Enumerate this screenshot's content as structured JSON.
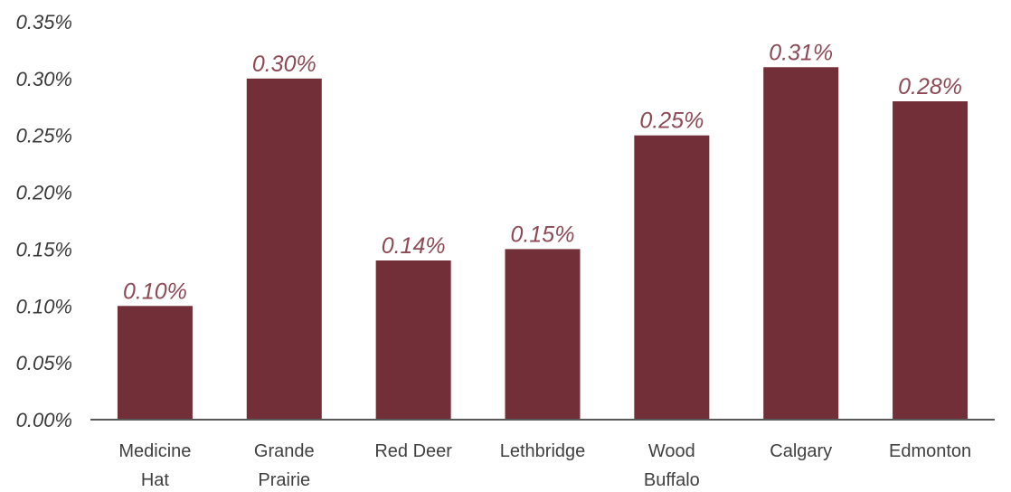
{
  "chart_data": {
    "type": "bar",
    "categories": [
      [
        "Medicine",
        "Hat"
      ],
      [
        "Grande",
        "Prairie"
      ],
      [
        "Red Deer"
      ],
      [
        "Lethbridge"
      ],
      [
        "Wood",
        "Buffalo"
      ],
      [
        "Calgary"
      ],
      [
        "Edmonton"
      ]
    ],
    "values": [
      0.1,
      0.3,
      0.14,
      0.15,
      0.25,
      0.31,
      0.28
    ],
    "data_labels": [
      "0.10%",
      "0.30%",
      "0.14%",
      "0.15%",
      "0.25%",
      "0.31%",
      "0.28%"
    ],
    "yticks": [
      0,
      0.05,
      0.1,
      0.15,
      0.2,
      0.25,
      0.3,
      0.35
    ],
    "ytick_labels": [
      "0.00%",
      "0.05%",
      "0.10%",
      "0.15%",
      "0.20%",
      "0.25%",
      "0.30%",
      "0.35%"
    ],
    "ylim": [
      0,
      0.35
    ],
    "title": "",
    "xlabel": "",
    "ylabel": "",
    "grid": false,
    "legend": "none",
    "colors": {
      "bar": "#722F37",
      "data_label": "#8C4A55",
      "axis": "#595959"
    }
  }
}
